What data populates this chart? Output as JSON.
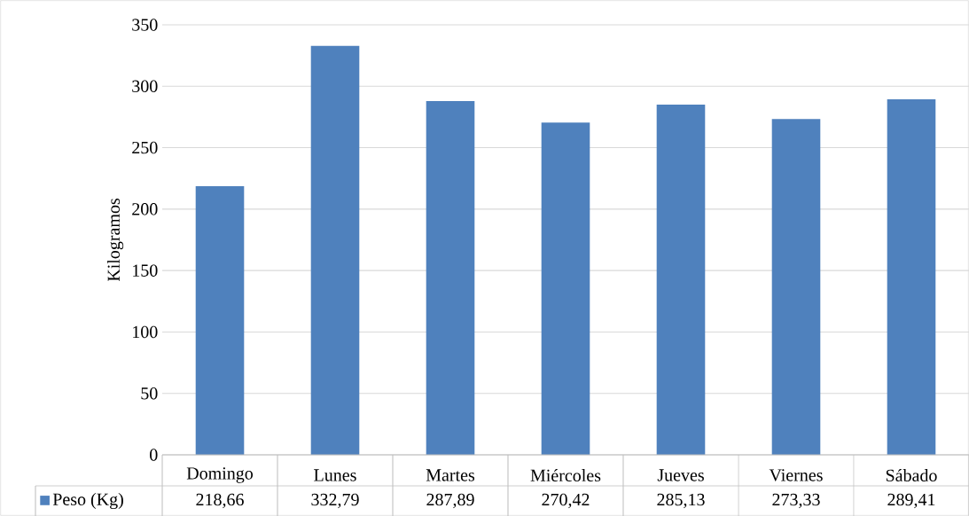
{
  "chart_data": {
    "type": "bar",
    "ylabel": "Kilogramos",
    "categories": [
      "Domingo",
      "Lunes",
      "Martes",
      "Miércoles",
      "Jueves",
      "Viernes",
      "Sábado"
    ],
    "series": [
      {
        "name": "Peso (Kg)",
        "color": "#4f81bd",
        "values": [
          218.66,
          332.79,
          287.89,
          270.42,
          285.13,
          273.33,
          289.41
        ],
        "value_labels": [
          "218,66",
          "332,79",
          "287,89",
          "270,42",
          "285,13",
          "273,33",
          "289,41"
        ]
      }
    ],
    "ylim": [
      0,
      350
    ],
    "yticks": [
      0,
      50,
      100,
      150,
      200,
      250,
      300,
      350
    ],
    "grid": "y"
  }
}
